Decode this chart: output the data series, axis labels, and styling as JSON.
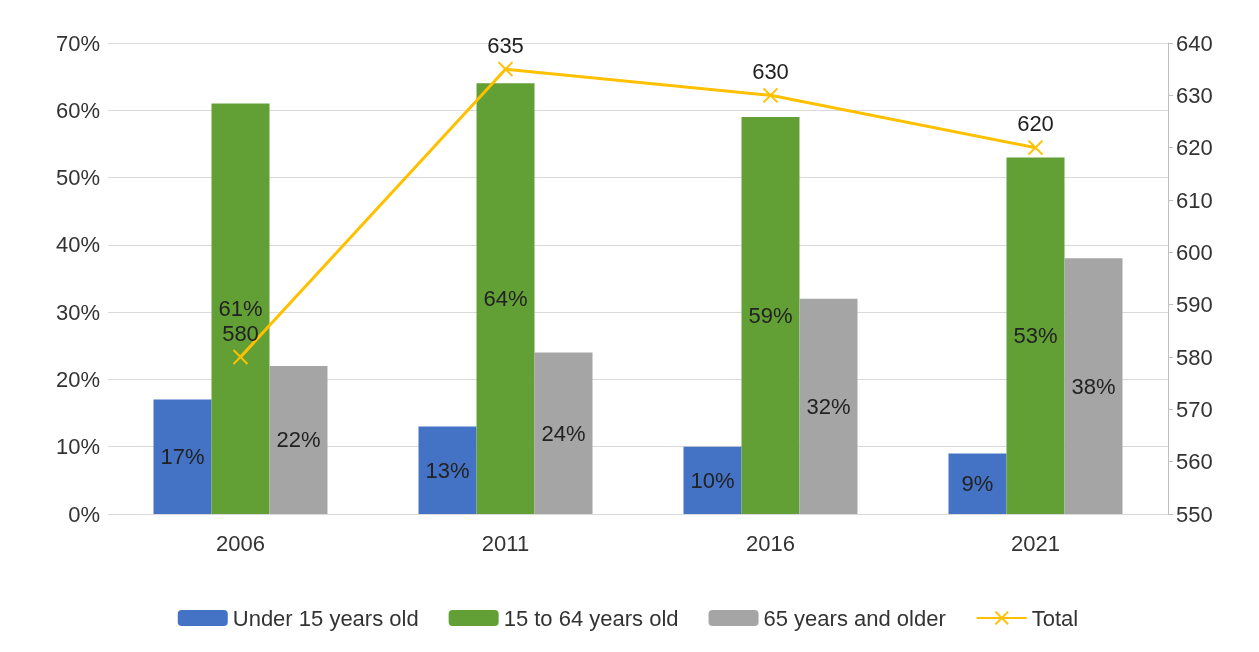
{
  "chart_data": {
    "type": "bar",
    "categories": [
      "2006",
      "2011",
      "2016",
      "2021"
    ],
    "series": [
      {
        "name": "Under 15 years old",
        "color": "#4472c4",
        "values": [
          17,
          13,
          10,
          9
        ],
        "value_labels": [
          "17%",
          "13%",
          "10%",
          "9%"
        ]
      },
      {
        "name": "15 to 64 years old",
        "color": "#62a036",
        "values": [
          61,
          64,
          59,
          53
        ],
        "value_labels": [
          "61%",
          "64%",
          "59%",
          "53%"
        ]
      },
      {
        "name": "65 years and older",
        "color": "#a5a5a5",
        "values": [
          22,
          24,
          32,
          38
        ],
        "value_labels": [
          "22%",
          "24%",
          "32%",
          "38%"
        ]
      },
      {
        "name": "Total",
        "type": "line",
        "axis": "y2",
        "color": "#ffc000",
        "marker": "cross",
        "values": [
          580,
          635,
          630,
          620
        ],
        "value_labels": [
          "580",
          "635",
          "630",
          "620"
        ]
      }
    ],
    "ylim": [
      0,
      70
    ],
    "yticks": [
      {
        "value": 0,
        "label": "0%"
      },
      {
        "value": 10,
        "label": "10%"
      },
      {
        "value": 20,
        "label": "20%"
      },
      {
        "value": 30,
        "label": "30%"
      },
      {
        "value": 40,
        "label": "40%"
      },
      {
        "value": 50,
        "label": "50%"
      },
      {
        "value": 60,
        "label": "60%"
      },
      {
        "value": 70,
        "label": "70%"
      }
    ],
    "y2lim": [
      550,
      640
    ],
    "y2ticks": [
      550,
      560,
      570,
      580,
      590,
      600,
      610,
      620,
      630,
      640
    ],
    "grid": "y",
    "legend": "bottom"
  }
}
